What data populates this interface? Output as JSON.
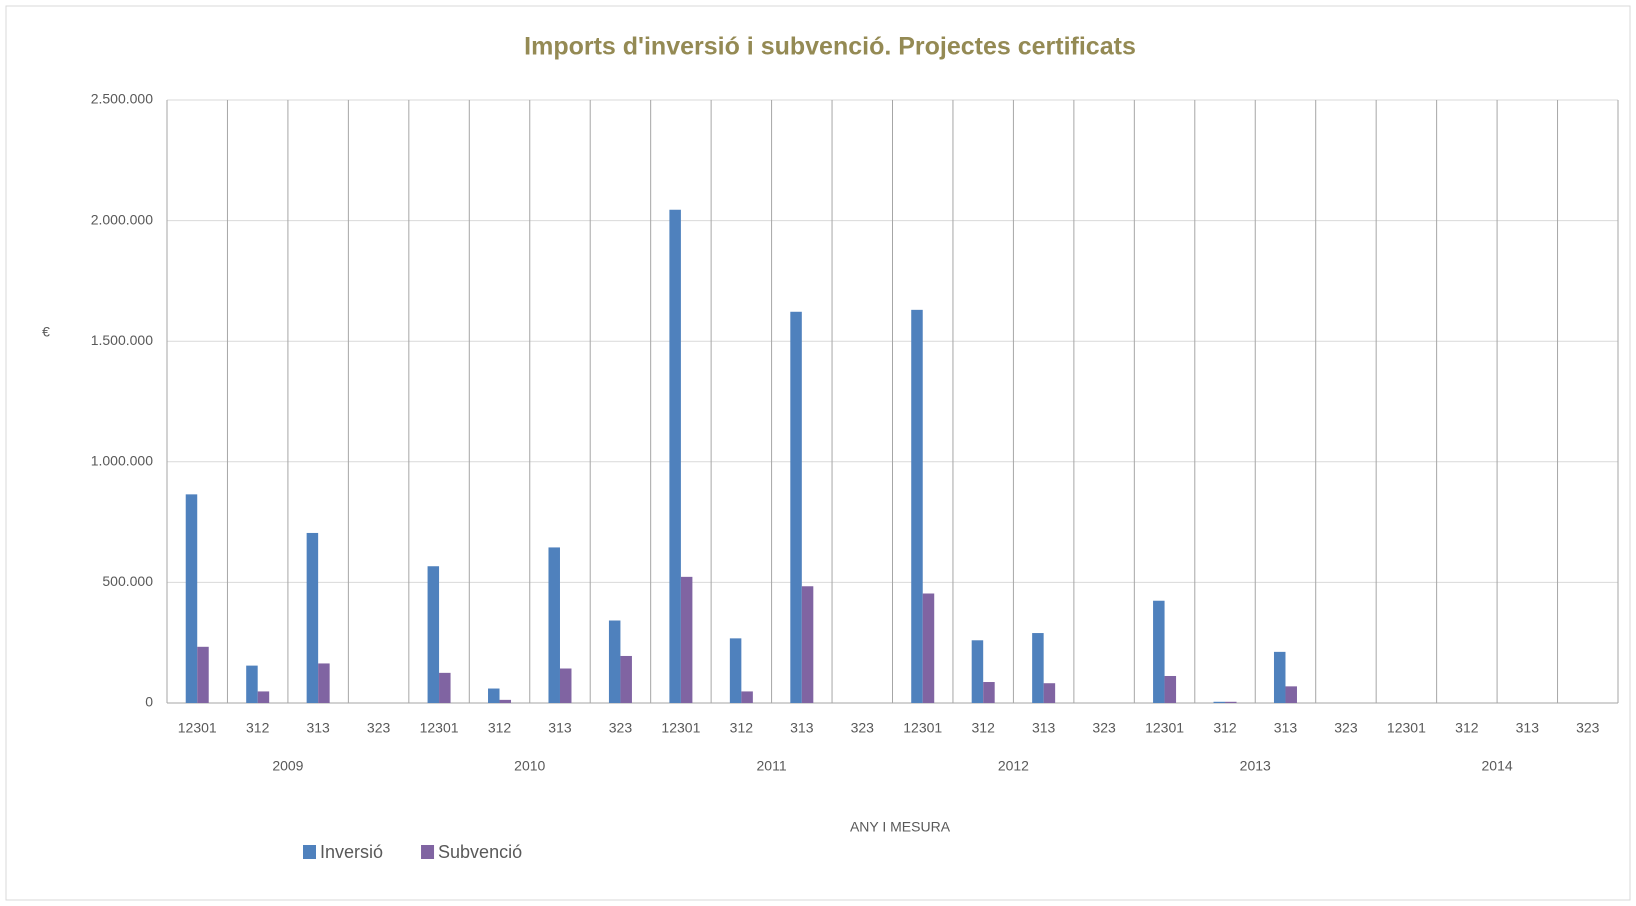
{
  "chart_data": {
    "type": "bar",
    "title": "Imports d'inversió i subvenció. Projectes certificats",
    "y_label": "€",
    "x_label": "ANY I MESURA",
    "categories": [
      "12301",
      "312",
      "313",
      "323",
      "12301",
      "312",
      "313",
      "323",
      "12301",
      "312",
      "313",
      "323",
      "12301",
      "312",
      "313",
      "323",
      "12301",
      "312",
      "313",
      "323",
      "12301",
      "312",
      "313",
      "323"
    ],
    "groups": [
      "2009",
      "2010",
      "2011",
      "2012",
      "2013",
      "2014"
    ],
    "series": [
      {
        "name": "Inversió",
        "color": "#4f81bd",
        "values": [
          865000,
          155000,
          705000,
          0,
          567000,
          60000,
          645000,
          342000,
          2045000,
          268000,
          1622000,
          0,
          1630000,
          260000,
          290000,
          0,
          424000,
          5000,
          212000,
          0,
          0,
          0,
          0,
          0
        ]
      },
      {
        "name": "Subvenció",
        "color": "#8064a2",
        "values": [
          233000,
          48000,
          164000,
          0,
          125000,
          13000,
          143000,
          195000,
          523000,
          48000,
          484000,
          0,
          454000,
          87000,
          82000,
          0,
          112000,
          5000,
          69000,
          0,
          0,
          0,
          0,
          0
        ]
      }
    ],
    "ylim": [
      0,
      2500000
    ],
    "yticks": [
      0,
      {
        "value": 500000,
        "label": "500.000"
      },
      {
        "value": 1000000,
        "label": "1.000.000"
      },
      {
        "value": 1500000,
        "label": "1.500.000"
      },
      {
        "value": 2000000,
        "label": "2.000.000"
      },
      {
        "value": 2500000,
        "label": "2.500.000"
      }
    ],
    "grid": true,
    "legend": "bottom-left"
  }
}
